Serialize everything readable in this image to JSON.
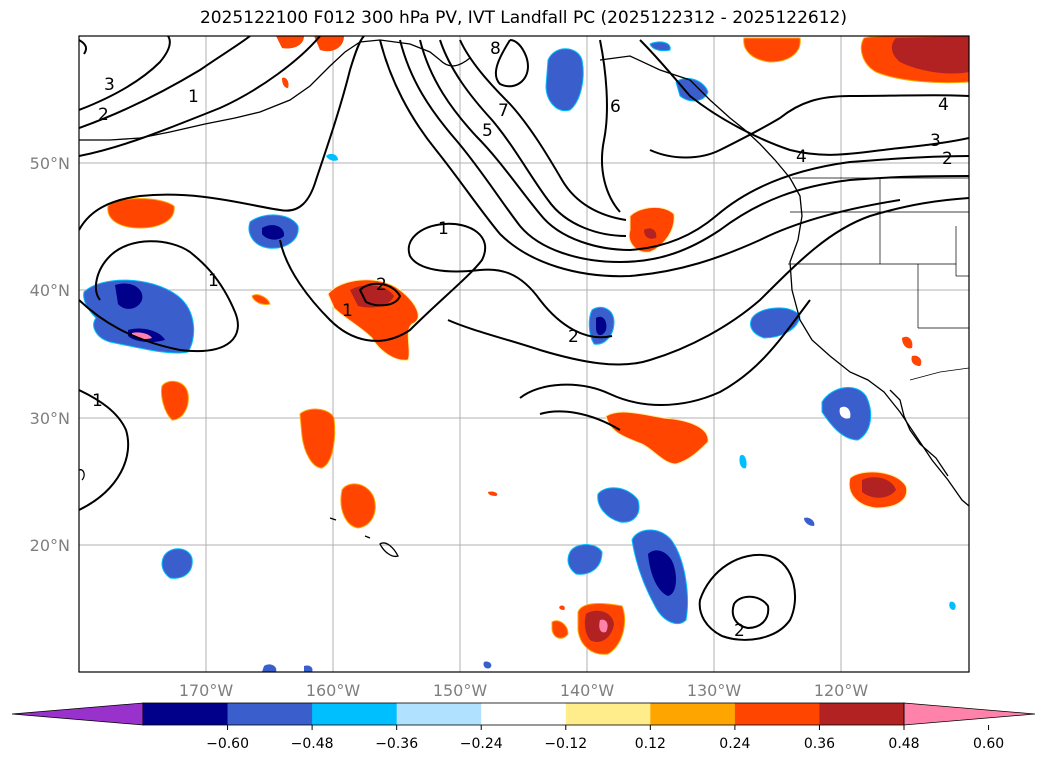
{
  "title": "2025122100 F012 300 hPa PV, IVT Landfall PC (2025122312 - 2025122612)",
  "map": {
    "lat_labels": [
      "50°N",
      "40°N",
      "30°N",
      "20°N"
    ],
    "lon_labels": [
      "170°W",
      "160°W",
      "150°W",
      "140°W",
      "130°W",
      "120°W"
    ],
    "lat_range": [
      10,
      60
    ],
    "lon_range": [
      -180,
      -110
    ]
  },
  "contour_labels": [
    "3",
    "2",
    "1",
    "8",
    "7",
    "5",
    "6",
    "4",
    "3",
    "2",
    "4",
    "1",
    "1",
    "2",
    "1",
    "2",
    "1",
    "2"
  ],
  "colorbar": {
    "ticks": [
      "−0.60",
      "−0.48",
      "−0.36",
      "−0.24",
      "−0.12",
      "0.12",
      "0.24",
      "0.36",
      "0.48",
      "0.60"
    ],
    "colors": [
      "#9932cc",
      "#00008b",
      "#3a5fcd",
      "#00bfff",
      "#b0e2ff",
      "#ffffff",
      "#ffec8b",
      "#ffa500",
      "#ff4500",
      "#b22222",
      "#ff82ab"
    ]
  }
}
